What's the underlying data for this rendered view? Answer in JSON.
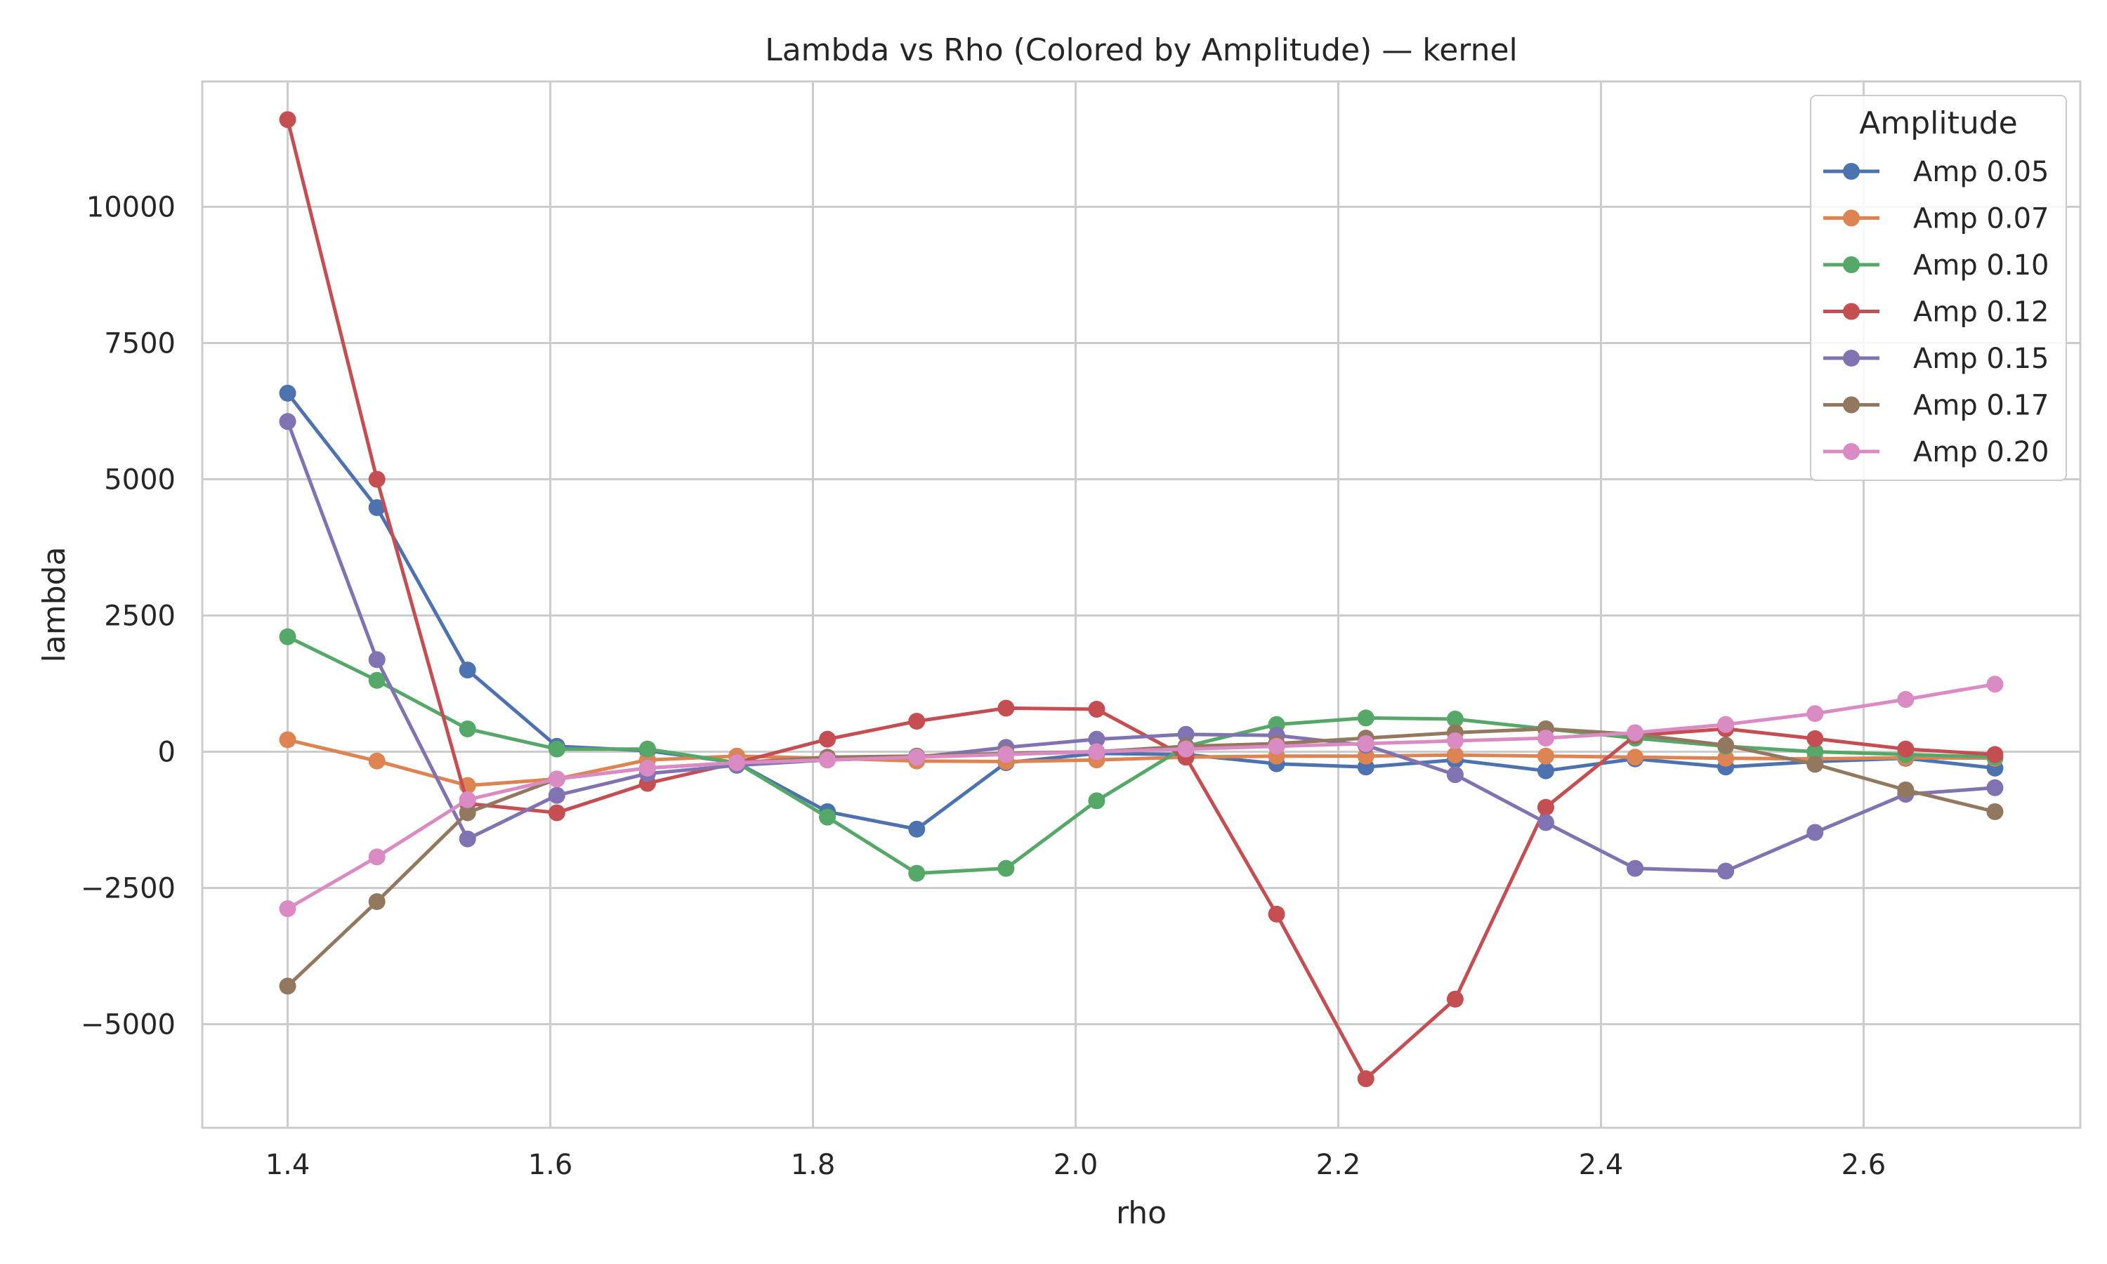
{
  "chart_data": {
    "type": "line",
    "title": "Lambda vs Rho (Colored by Amplitude) — kernel",
    "xlabel": "rho",
    "ylabel": "lambda",
    "xlim": [
      1.335,
      2.765
    ],
    "ylim": [
      -6900,
      12300
    ],
    "xticks": [
      1.4,
      1.6,
      1.8,
      2.0,
      2.2,
      2.4,
      2.6
    ],
    "xtick_labels": [
      "1.4",
      "1.6",
      "1.8",
      "2.0",
      "2.2",
      "2.4",
      "2.6"
    ],
    "yticks": [
      -5000,
      -2500,
      0,
      2500,
      5000,
      7500,
      10000
    ],
    "ytick_labels": [
      "−5000",
      "−2500",
      "0",
      "2500",
      "5000",
      "7500",
      "10000"
    ],
    "grid": true,
    "legend_title": "Amplitude",
    "legend_position": "top-right",
    "x": [
      1.4,
      1.468,
      1.537,
      1.605,
      1.674,
      1.742,
      1.811,
      1.879,
      1.947,
      2.016,
      2.084,
      2.153,
      2.221,
      2.289,
      2.358,
      2.426,
      2.495,
      2.563,
      2.632,
      2.7
    ],
    "series": [
      {
        "name": "Amp 0.05",
        "color": "#4c72b0",
        "values": [
          6580,
          4480,
          1500,
          100,
          20,
          -200,
          -1100,
          -1420,
          -200,
          -30,
          -50,
          -220,
          -280,
          -150,
          -350,
          -130,
          -280,
          -180,
          -120,
          -300
        ]
      },
      {
        "name": "Amp 0.07",
        "color": "#dd8452",
        "values": [
          220,
          -170,
          -620,
          -500,
          -150,
          -80,
          -120,
          -170,
          -180,
          -150,
          -100,
          -80,
          -80,
          -60,
          -80,
          -100,
          -120,
          -130,
          -110,
          -120
        ]
      },
      {
        "name": "Amp 0.10",
        "color": "#55a868",
        "values": [
          2110,
          1310,
          420,
          50,
          50,
          -200,
          -1200,
          -2230,
          -2140,
          -900,
          100,
          500,
          620,
          600,
          420,
          250,
          100,
          0,
          -50,
          -100
        ]
      },
      {
        "name": "Amp 0.12",
        "color": "#c44e52",
        "values": [
          11600,
          5000,
          -950,
          -1120,
          -580,
          -200,
          230,
          560,
          800,
          780,
          -100,
          -2980,
          -6000,
          -4540,
          -1020,
          300,
          420,
          240,
          50,
          -50
        ]
      },
      {
        "name": "Amp 0.15",
        "color": "#8172b2",
        "values": [
          6060,
          1690,
          -1600,
          -800,
          -400,
          -250,
          -150,
          -100,
          80,
          230,
          320,
          300,
          120,
          -420,
          -1300,
          -2140,
          -2190,
          -1480,
          -780,
          -660
        ]
      },
      {
        "name": "Amp 0.17",
        "color": "#937860",
        "values": [
          -4300,
          -2750,
          -1120,
          -500,
          -300,
          -200,
          -100,
          -80,
          -30,
          0,
          100,
          150,
          250,
          350,
          420,
          320,
          120,
          -230,
          -700,
          -1100
        ]
      },
      {
        "name": "Amp 0.20",
        "color": "#da8bc3",
        "values": [
          -2880,
          -1930,
          -880,
          -500,
          -300,
          -200,
          -150,
          -100,
          -50,
          0,
          50,
          100,
          150,
          200,
          250,
          350,
          500,
          700,
          960,
          1240
        ]
      }
    ]
  }
}
